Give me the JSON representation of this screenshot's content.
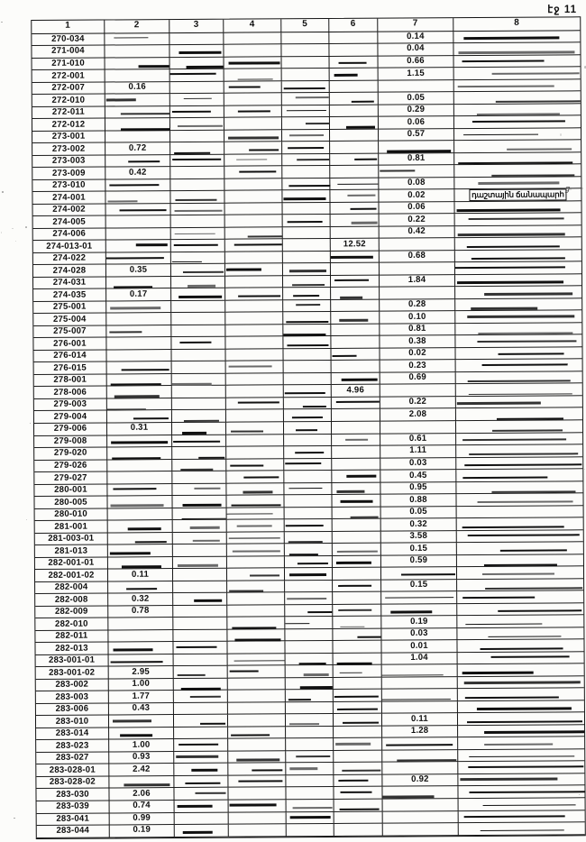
{
  "page": {
    "label": "էջ 11"
  },
  "table": {
    "columns": [
      "1",
      "2",
      "3",
      "4",
      "5",
      "6",
      "7",
      "8"
    ],
    "margin_mark": "ց",
    "rows": [
      {
        "id": "270-034",
        "col": 7,
        "value": "0.14"
      },
      {
        "id": "271-004",
        "col": 7,
        "value": "0.04"
      },
      {
        "id": "271-010",
        "col": 7,
        "value": "0.66"
      },
      {
        "id": "272-001",
        "col": 7,
        "value": "1.15"
      },
      {
        "id": "272-007",
        "col": 2,
        "value": "0.16"
      },
      {
        "id": "272-010",
        "col": 7,
        "value": "0.05"
      },
      {
        "id": "272-011",
        "col": 7,
        "value": "0.29"
      },
      {
        "id": "272-012",
        "col": 7,
        "value": "0.06"
      },
      {
        "id": "273-001",
        "col": 7,
        "value": "0.57"
      },
      {
        "id": "273-002",
        "col": 2,
        "value": "0.72"
      },
      {
        "id": "273-003",
        "col": 7,
        "value": "0.81"
      },
      {
        "id": "273-009",
        "col": 2,
        "value": "0.42"
      },
      {
        "id": "273-010",
        "col": 7,
        "value": "0.08"
      },
      {
        "id": "274-001",
        "col": 7,
        "value": "0.02",
        "note": "դաշտային ճանապարհ"
      },
      {
        "id": "274-002",
        "col": 7,
        "value": "0.06"
      },
      {
        "id": "274-005",
        "col": 7,
        "value": "0.22"
      },
      {
        "id": "274-006",
        "col": 7,
        "value": "0.42"
      },
      {
        "id": "274-013-01",
        "col": 6,
        "value": "12.52"
      },
      {
        "id": "274-022",
        "col": 7,
        "value": "0.68"
      },
      {
        "id": "274-028",
        "col": 2,
        "value": "0.35"
      },
      {
        "id": "274-031",
        "col": 7,
        "value": "1.84"
      },
      {
        "id": "274-035",
        "col": 2,
        "value": "0.17"
      },
      {
        "id": "275-001",
        "col": 7,
        "value": "0.28"
      },
      {
        "id": "275-004",
        "col": 7,
        "value": "0.10"
      },
      {
        "id": "275-007",
        "col": 7,
        "value": "0.81"
      },
      {
        "id": "276-001",
        "col": 7,
        "value": "0.38"
      },
      {
        "id": "276-014",
        "col": 7,
        "value": "0.02"
      },
      {
        "id": "276-015",
        "col": 7,
        "value": "0.23"
      },
      {
        "id": "278-001",
        "col": 7,
        "value": "0.69"
      },
      {
        "id": "278-006",
        "col": 6,
        "value": "4.96"
      },
      {
        "id": "279-003",
        "col": 7,
        "value": "0.22"
      },
      {
        "id": "279-004",
        "col": 7,
        "value": "2.08"
      },
      {
        "id": "279-006",
        "col": 2,
        "value": "0.31"
      },
      {
        "id": "279-008",
        "col": 7,
        "value": "0.61"
      },
      {
        "id": "279-020",
        "col": 7,
        "value": "1.11"
      },
      {
        "id": "279-026",
        "col": 7,
        "value": "0.03"
      },
      {
        "id": "279-027",
        "col": 7,
        "value": "0.45"
      },
      {
        "id": "280-001",
        "col": 7,
        "value": "0.95"
      },
      {
        "id": "280-005",
        "col": 7,
        "value": "0.88"
      },
      {
        "id": "280-010",
        "col": 7,
        "value": "0.05"
      },
      {
        "id": "281-001",
        "col": 7,
        "value": "0.32"
      },
      {
        "id": "281-003-01",
        "col": 7,
        "value": "3.58"
      },
      {
        "id": "281-013",
        "col": 7,
        "value": "0.15"
      },
      {
        "id": "282-001-01",
        "col": 7,
        "value": "0.59"
      },
      {
        "id": "282-001-02",
        "col": 2,
        "value": "0.11"
      },
      {
        "id": "282-004",
        "col": 7,
        "value": "0.15"
      },
      {
        "id": "282-008",
        "col": 2,
        "value": "0.32"
      },
      {
        "id": "282-009",
        "col": 2,
        "value": "0.78"
      },
      {
        "id": "282-010",
        "col": 7,
        "value": "0.19"
      },
      {
        "id": "282-011",
        "col": 7,
        "value": "0.03"
      },
      {
        "id": "282-013",
        "col": 7,
        "value": "0.01"
      },
      {
        "id": "283-001-01",
        "col": 7,
        "value": "1.04"
      },
      {
        "id": "283-001-02",
        "col": 2,
        "value": "2.95"
      },
      {
        "id": "283-002",
        "col": 2,
        "value": "1.00"
      },
      {
        "id": "283-003",
        "col": 2,
        "value": "1.77"
      },
      {
        "id": "283-006",
        "col": 2,
        "value": "0.43"
      },
      {
        "id": "283-010",
        "col": 7,
        "value": "0.11"
      },
      {
        "id": "283-014",
        "col": 7,
        "value": "1.28"
      },
      {
        "id": "283-023",
        "col": 2,
        "value": "1.00"
      },
      {
        "id": "283-027",
        "col": 2,
        "value": "0.93"
      },
      {
        "id": "283-028-01",
        "col": 2,
        "value": "2.42"
      },
      {
        "id": "283-028-02",
        "col": 7,
        "value": "0.92"
      },
      {
        "id": "283-030",
        "col": 2,
        "value": "2.06"
      },
      {
        "id": "283-039",
        "col": 2,
        "value": "0.74"
      },
      {
        "id": "283-041",
        "col": 2,
        "value": "0.99"
      },
      {
        "id": "283-044",
        "col": 2,
        "value": "0.19"
      }
    ]
  }
}
